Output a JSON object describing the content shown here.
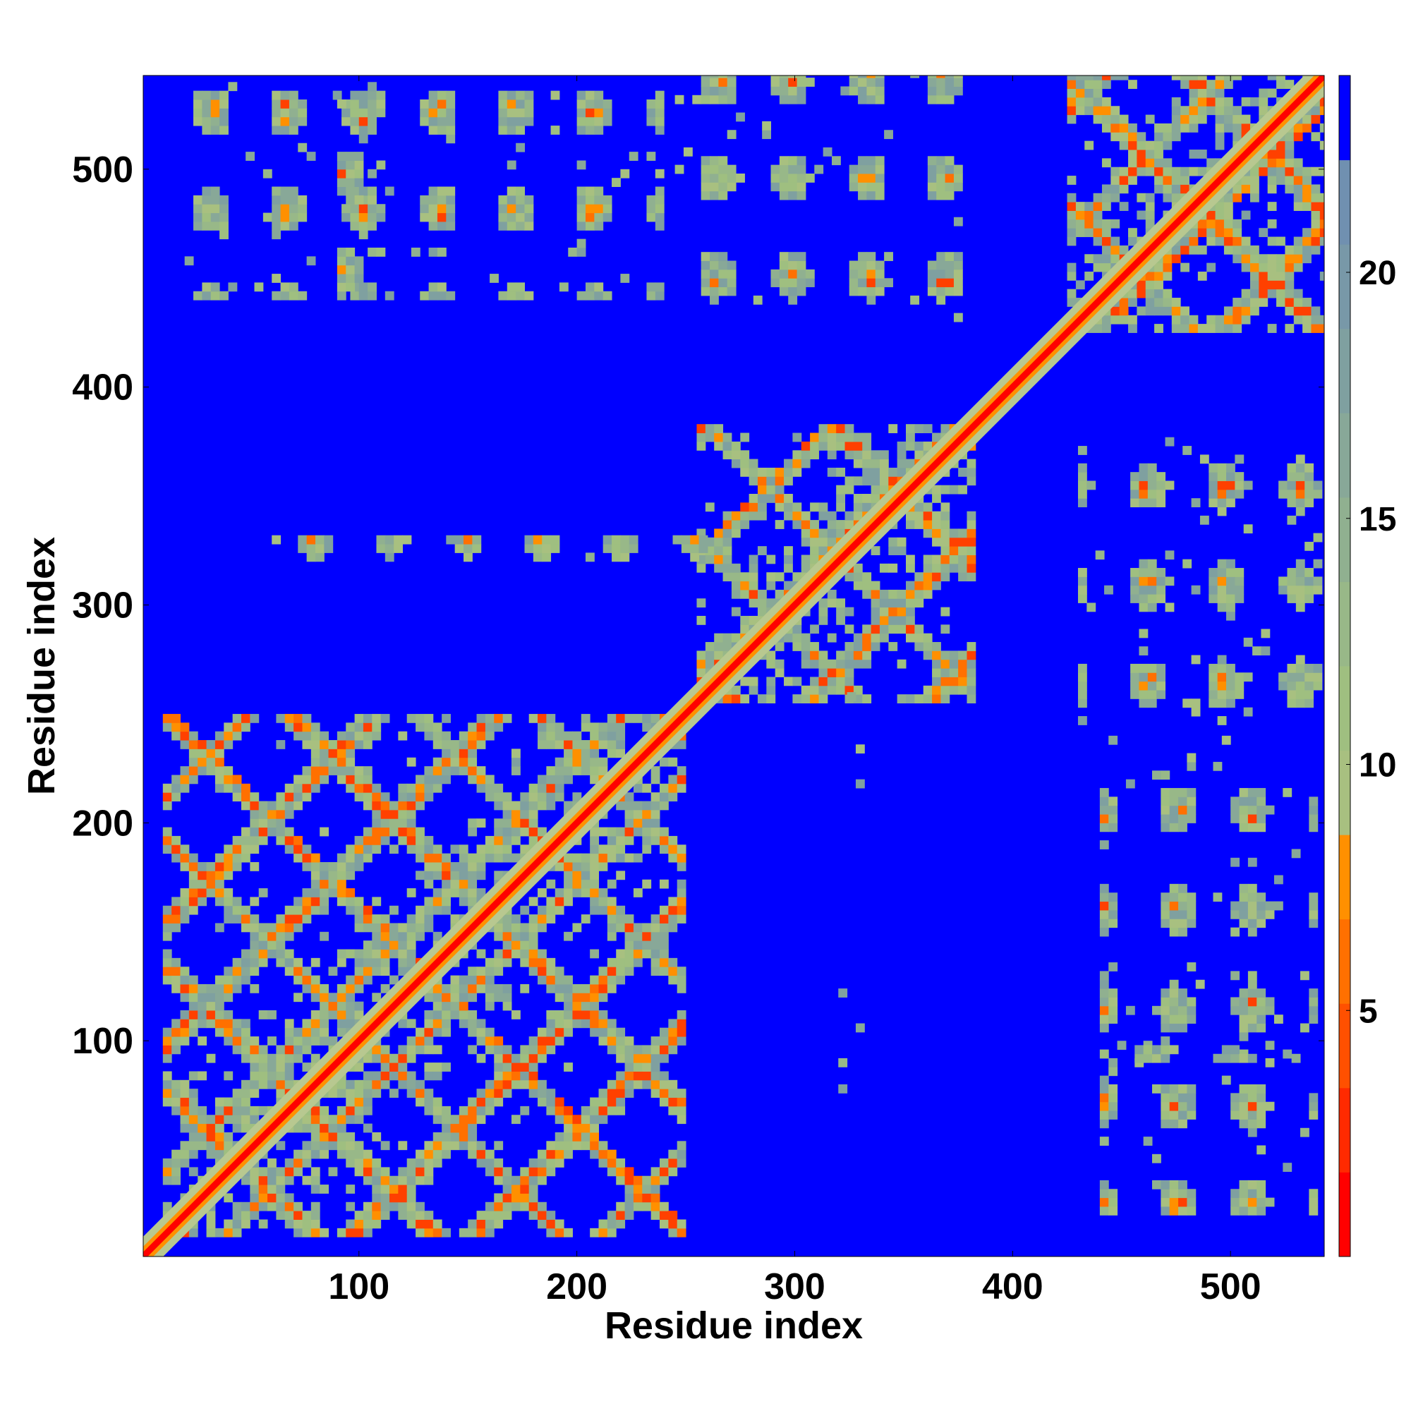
{
  "chart_data": {
    "type": "heatmap",
    "title": "",
    "xlabel": "Residue index",
    "ylabel": "Residue index",
    "xlim": [
      1,
      543
    ],
    "ylim": [
      1,
      543
    ],
    "x_ticks": [
      100,
      200,
      300,
      400,
      500
    ],
    "y_ticks": [
      100,
      200,
      300,
      400,
      500
    ],
    "x_tick_labels": [
      "100",
      "200",
      "300",
      "400",
      "500"
    ],
    "y_tick_labels": [
      "100",
      "200",
      "300",
      "400",
      "500"
    ],
    "colorbar": {
      "range": [
        0,
        24
      ],
      "ticks": [
        5,
        10,
        15,
        20
      ],
      "tick_labels": [
        "5",
        "10",
        "15",
        "20"
      ],
      "colors": [
        "#ff0000",
        "#ff2a00",
        "#ff5000",
        "#ff7000",
        "#ff9000",
        "#a8c080",
        "#9fbf80",
        "#98b888",
        "#90b090",
        "#88a898",
        "#7fa0a0",
        "#7898a8",
        "#7090b0",
        "#0000ff"
      ],
      "background_color": "#0000ff",
      "diagonal_color": "#ff0000"
    },
    "structure": {
      "diagonal_band": [
        [
          1,
          1
        ],
        [
          543,
          543
        ]
      ],
      "domains": [
        {
          "range": [
            10,
            250
          ]
        },
        {
          "range": [
            255,
            380
          ]
        },
        {
          "range": [
            425,
            543
          ]
        }
      ],
      "cross_blocks": [
        {
          "x": [
            245,
            375
          ],
          "y": [
            430,
            543
          ]
        },
        {
          "x": [
            430,
            543
          ],
          "y": [
            245,
            375
          ]
        },
        {
          "x": [
            20,
            240
          ],
          "y": [
            440,
            540
          ]
        },
        {
          "x": [
            440,
            540
          ],
          "y": [
            20,
            240
          ]
        },
        {
          "x": [
            60,
            260
          ],
          "y": [
            320,
            330
          ]
        },
        {
          "x": [
            320,
            330
          ],
          "y": [
            60,
            260
          ]
        },
        {
          "x": [
            90,
            100
          ],
          "y": [
            440,
            530
          ]
        },
        {
          "x": [
            440,
            530
          ],
          "y": [
            90,
            100
          ]
        }
      ]
    }
  }
}
